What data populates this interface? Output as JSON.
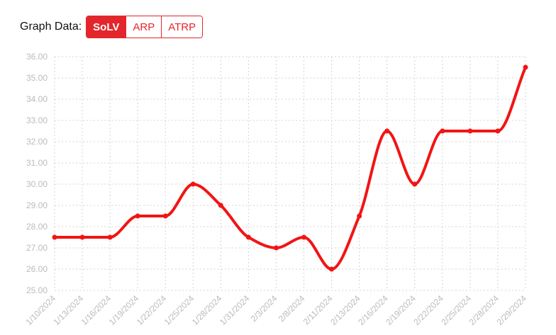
{
  "header": {
    "label": "Graph Data:",
    "tabs": [
      {
        "label": "SoLV",
        "active": true
      },
      {
        "label": "ARP",
        "active": false
      },
      {
        "label": "ATRP",
        "active": false
      }
    ]
  },
  "colors": {
    "accent": "#e3262c",
    "line": "#f21414",
    "grid": "#d4d4d4",
    "tick": "#bbbbbb"
  },
  "chart_data": {
    "type": "line",
    "title": "",
    "xlabel": "",
    "ylabel": "",
    "categories": [
      "1/10/2024",
      "1/13/2024",
      "1/16/2024",
      "1/19/2024",
      "1/22/2024",
      "1/25/2024",
      "1/28/2024",
      "1/31/2024",
      "2/3/2024",
      "2/8/2024",
      "2/11/2024",
      "2/13/2024",
      "2/16/2024",
      "2/19/2024",
      "2/22/2024",
      "2/25/2024",
      "2/28/2024",
      "2/29/2024"
    ],
    "values": [
      27.5,
      27.5,
      27.5,
      28.5,
      28.5,
      30.0,
      29.0,
      27.5,
      27.0,
      27.5,
      26.0,
      28.5,
      32.5,
      30.0,
      32.5,
      32.5,
      32.5,
      35.5
    ],
    "ylim": [
      25,
      36
    ],
    "yticks": [
      "25.00",
      "26.00",
      "27.00",
      "28.00",
      "29.00",
      "30.00",
      "31.00",
      "32.00",
      "33.00",
      "34.00",
      "35.00",
      "36.00"
    ],
    "grid": true,
    "legend": "none"
  }
}
